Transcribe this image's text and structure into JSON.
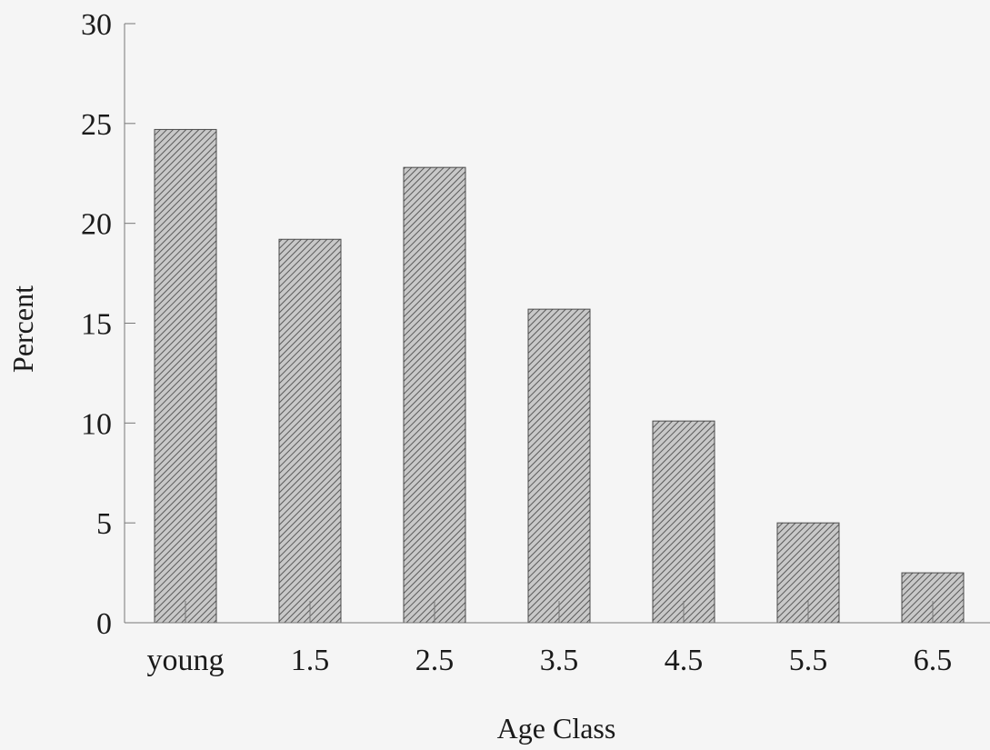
{
  "chart_data": {
    "type": "bar",
    "xlabel": "Age Class",
    "ylabel": "Percent",
    "categories": [
      "young",
      "1.5",
      "2.5",
      "3.5",
      "4.5",
      "5.5",
      "6.5"
    ],
    "values": [
      24.7,
      19.2,
      22.8,
      15.7,
      10.1,
      5.0,
      2.5
    ],
    "ylim": [
      0,
      30
    ],
    "yticks": [
      0,
      5,
      10,
      15,
      20,
      25,
      30
    ],
    "grid": false,
    "bar_fill": "hatched",
    "colors": {
      "bar_fill": "#c8c8c8",
      "hatch": "#5a5a5a",
      "axis": "#777777",
      "background": "#f5f5f5"
    }
  }
}
